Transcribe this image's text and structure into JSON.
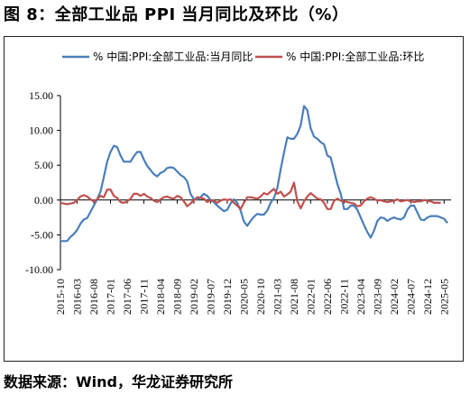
{
  "figure_title": "图 8：全部工业品 PPI 当月同比及环比（%）",
  "source_note": "数据来源：Wind，华龙证券研究所",
  "chart_data": {
    "type": "line",
    "title": "",
    "xlabel": "",
    "ylabel": "",
    "ylim": [
      -10,
      15
    ],
    "yticks": [
      "15.00",
      "10.00",
      "5.00",
      "0.00",
      "-5.00",
      "-10.00"
    ],
    "ytick_values": [
      15,
      10,
      5,
      0,
      -5,
      -10
    ],
    "xticks": [
      "2015-10",
      "2016-03",
      "2016-08",
      "2017-01",
      "2017-06",
      "2017-11",
      "2018-04",
      "2018-09",
      "2019-02",
      "2019-07",
      "2019-12",
      "2020-05",
      "2020-10",
      "2021-03",
      "2021-08",
      "2022-01",
      "2022-06",
      "2022-11",
      "2023-04",
      "2023-09",
      "2024-02",
      "2024-07",
      "2024-12",
      "2025-05"
    ],
    "legend_position": "top",
    "x_start": "2015-10",
    "series": [
      {
        "name": "% 中国:PPI:全部工业品:当月同比",
        "color": "#4a7ebb",
        "values": [
          -5.9,
          -5.9,
          -5.9,
          -5.3,
          -4.9,
          -4.3,
          -3.4,
          -2.8,
          -2.6,
          -1.7,
          -0.8,
          0.1,
          1.2,
          3.3,
          5.5,
          6.9,
          7.8,
          7.6,
          6.4,
          5.5,
          5.5,
          5.5,
          6.3,
          6.9,
          6.9,
          5.8,
          4.9,
          4.3,
          3.7,
          3.4,
          3.9,
          4.1,
          4.6,
          4.7,
          4.6,
          4.1,
          3.6,
          3.3,
          2.7,
          0.9,
          0.1,
          0.1,
          0.4,
          0.9,
          0.6,
          0.0,
          -0.3,
          -0.8,
          -1.2,
          -1.6,
          -1.4,
          -0.5,
          0.1,
          -0.4,
          -1.5,
          -3.1,
          -3.7,
          -3.0,
          -2.4,
          -2.0,
          -2.1,
          -2.1,
          -1.5,
          -0.4,
          0.3,
          1.7,
          4.4,
          6.8,
          9.0,
          8.8,
          8.8,
          9.5,
          10.7,
          13.5,
          12.9,
          10.3,
          9.1,
          8.8,
          8.3,
          8.0,
          6.4,
          6.1,
          4.2,
          2.3,
          0.9,
          -1.3,
          -1.3,
          -0.8,
          -0.8,
          -1.4,
          -2.5,
          -3.6,
          -4.6,
          -5.4,
          -4.4,
          -3.0,
          -2.5,
          -2.6,
          -3.0,
          -2.7,
          -2.5,
          -2.7,
          -2.8,
          -2.5,
          -1.4,
          -0.8,
          -0.8,
          -1.8,
          -2.8,
          -2.9,
          -2.5,
          -2.3,
          -2.3,
          -2.3,
          -2.5,
          -2.7,
          -3.3
        ]
      },
      {
        "name": "% 中国:PPI:全部工业品:环比",
        "color": "#c0504d",
        "values": [
          -0.4,
          -0.5,
          -0.6,
          -0.5,
          -0.4,
          0.0,
          0.5,
          0.7,
          0.5,
          0.1,
          -0.2,
          0.1,
          0.6,
          0.4,
          1.5,
          1.5,
          0.6,
          0.3,
          -0.3,
          -0.4,
          -0.2,
          0.2,
          0.9,
          0.9,
          0.6,
          0.9,
          0.5,
          0.3,
          -0.1,
          -0.3,
          0.1,
          0.4,
          0.5,
          0.3,
          0.2,
          0.6,
          0.4,
          -0.2,
          -0.9,
          -0.5,
          0.0,
          0.4,
          0.3,
          0.2,
          -0.3,
          0.0,
          -0.1,
          -0.4,
          -0.1,
          0.1,
          0.0,
          0.1,
          -0.4,
          -0.8,
          -1.3,
          -0.4,
          0.4,
          0.4,
          0.3,
          0.2,
          0.5,
          1.0,
          0.8,
          1.2,
          1.6,
          0.9,
          1.2,
          0.5,
          0.8,
          1.2,
          2.5,
          -0.2,
          -1.2,
          -0.2,
          0.5,
          1.0,
          0.6,
          0.2,
          0.1,
          -0.4,
          -1.3,
          -1.3,
          -0.1,
          0.2,
          -0.1,
          -0.2,
          -0.3,
          -0.4,
          -0.5,
          -0.9,
          -0.8,
          -0.2,
          0.2,
          0.4,
          0.2,
          -0.1,
          0.0,
          -0.2,
          -0.3,
          -0.2,
          -0.1,
          0.1,
          -0.2,
          -0.1,
          0.0,
          -0.2,
          -0.3,
          -0.2,
          -0.2,
          0.0,
          -0.1,
          -0.2,
          -0.4,
          -0.4,
          -0.4
        ]
      }
    ]
  }
}
